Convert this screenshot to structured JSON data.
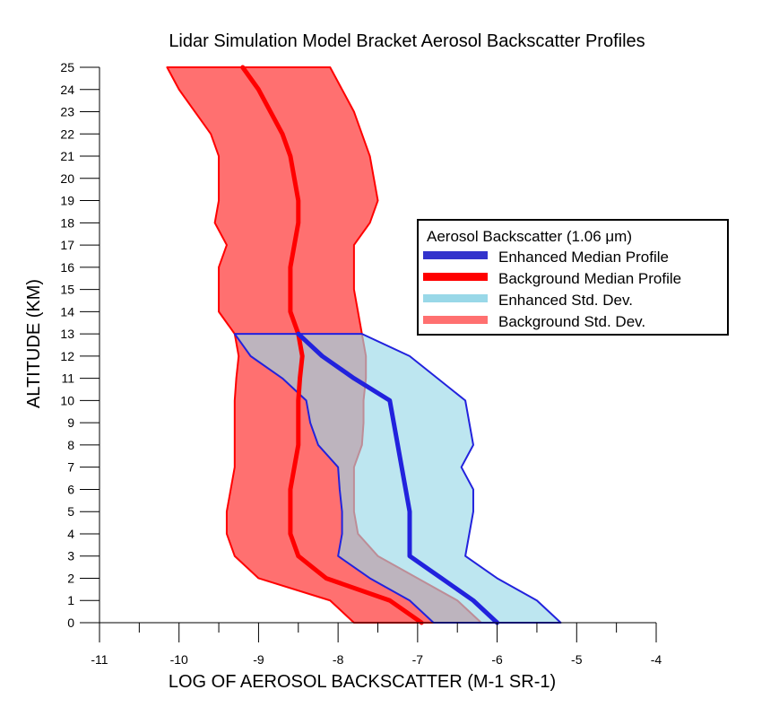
{
  "chart_data": {
    "type": "area",
    "title": "Lidar Simulation Model Bracket Aerosol Backscatter Profiles",
    "xlabel": "LOG OF AEROSOL BACKSCATTER (M-1 SR-1)",
    "ylabel": "ALTITUDE (KM)",
    "xlim": [
      -11,
      -4
    ],
    "ylim": [
      0,
      25
    ],
    "x_ticks": [
      -11,
      -10,
      -9,
      -8,
      -7,
      -6,
      -5,
      -4
    ],
    "y_ticks": [
      0,
      1,
      2,
      3,
      4,
      5,
      6,
      7,
      8,
      9,
      10,
      11,
      12,
      13,
      14,
      15,
      16,
      17,
      18,
      19,
      20,
      21,
      22,
      23,
      24,
      25
    ],
    "legend": {
      "title": "Aerosol Backscatter (1.06 μm)",
      "placement": "right",
      "entries": [
        {
          "label": "Enhanced Median Profile",
          "color": "#3333cc"
        },
        {
          "label": "Background Median Profile",
          "color": "#ff0000"
        },
        {
          "label": "Enhanced Std. Dev.",
          "color": "#99d8e8"
        },
        {
          "label": "Background Std. Dev.",
          "color": "#ff7070"
        }
      ]
    },
    "series": [
      {
        "name": "Background Std. Dev.",
        "kind": "band",
        "fill": "#ff7070",
        "edge": "#ff0000",
        "altitude": [
          0,
          1,
          2,
          3,
          4,
          5,
          6,
          7,
          8,
          9,
          10,
          11,
          12,
          13,
          14,
          15,
          16,
          17,
          18,
          19,
          20,
          21,
          22,
          23,
          24,
          25
        ],
        "lower": [
          -7.8,
          -8.1,
          -9.0,
          -9.3,
          -9.4,
          -9.4,
          -9.35,
          -9.3,
          -9.3,
          -9.3,
          -9.3,
          -9.28,
          -9.25,
          -9.3,
          -9.5,
          -9.5,
          -9.5,
          -9.4,
          -9.55,
          -9.5,
          -9.5,
          -9.5,
          -9.6,
          -9.8,
          -10.0,
          -10.15
        ],
        "upper": [
          -6.2,
          -6.5,
          -7.0,
          -7.5,
          -7.75,
          -7.8,
          -7.8,
          -7.8,
          -7.7,
          -7.68,
          -7.68,
          -7.65,
          -7.65,
          -7.7,
          -7.75,
          -7.8,
          -7.8,
          -7.8,
          -7.6,
          -7.5,
          -7.55,
          -7.6,
          -7.7,
          -7.8,
          -7.95,
          -8.1
        ]
      },
      {
        "name": "Enhanced Std. Dev.",
        "kind": "band",
        "fill": "#99d8e8",
        "edge": "#2222dd",
        "altitude": [
          0,
          1,
          2,
          3,
          4,
          5,
          6,
          7,
          8,
          9,
          10,
          11,
          12,
          13
        ],
        "lower": [
          -6.8,
          -7.1,
          -7.6,
          -8.0,
          -7.95,
          -7.95,
          -7.98,
          -8.0,
          -8.25,
          -8.35,
          -8.4,
          -8.7,
          -9.1,
          -9.3
        ],
        "upper": [
          -5.2,
          -5.5,
          -6.0,
          -6.4,
          -6.35,
          -6.3,
          -6.3,
          -6.45,
          -6.3,
          -6.35,
          -6.4,
          -6.75,
          -7.1,
          -7.7
        ]
      },
      {
        "name": "Background Median Profile",
        "kind": "line",
        "color": "#ff0000",
        "altitude": [
          0,
          1,
          2,
          3,
          4,
          5,
          6,
          7,
          8,
          9,
          10,
          11,
          12,
          13,
          14,
          15,
          16,
          17,
          18,
          19,
          20,
          21,
          22,
          23,
          24,
          25
        ],
        "x": [
          -6.95,
          -7.35,
          -8.15,
          -8.5,
          -8.6,
          -8.6,
          -8.6,
          -8.55,
          -8.5,
          -8.5,
          -8.5,
          -8.48,
          -8.45,
          -8.5,
          -8.6,
          -8.6,
          -8.6,
          -8.55,
          -8.5,
          -8.5,
          -8.55,
          -8.6,
          -8.7,
          -8.85,
          -9.0,
          -9.2
        ]
      },
      {
        "name": "Enhanced Median Profile",
        "kind": "line",
        "color": "#2222dd",
        "altitude": [
          0,
          1,
          2,
          3,
          4,
          5,
          6,
          7,
          8,
          9,
          10,
          11,
          12,
          13
        ],
        "x": [
          -6.0,
          -6.3,
          -6.7,
          -7.1,
          -7.1,
          -7.1,
          -7.15,
          -7.2,
          -7.25,
          -7.3,
          -7.35,
          -7.8,
          -8.2,
          -8.5
        ]
      }
    ]
  }
}
